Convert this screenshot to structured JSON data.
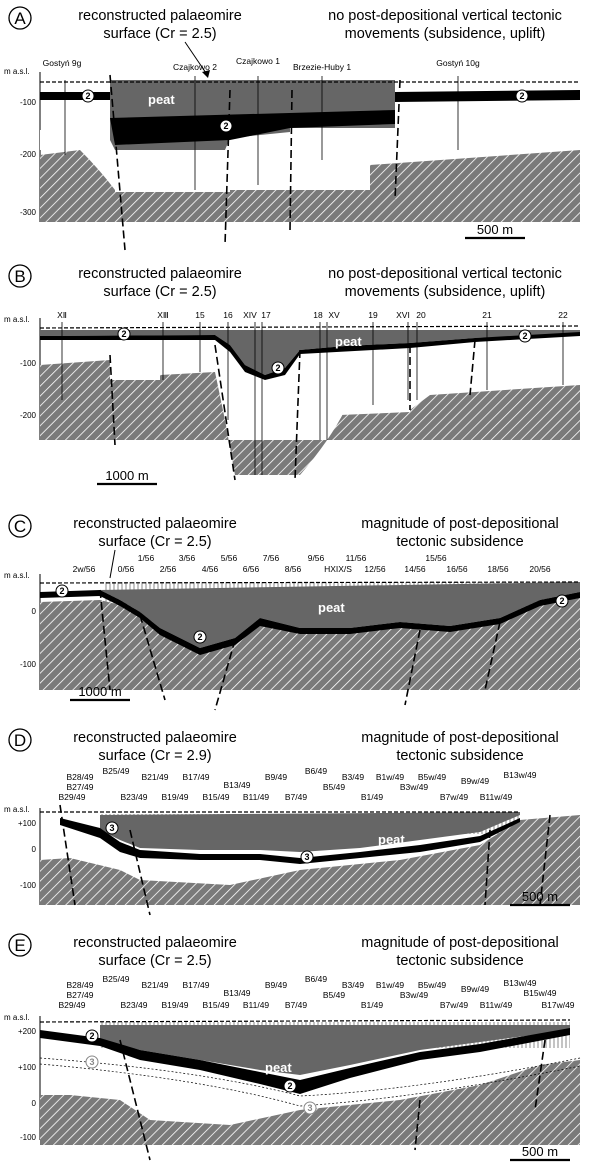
{
  "panels": [
    {
      "letter": "A",
      "left_title": [
        "reconstructed palaeomire",
        "surface (Cr = 2.5)"
      ],
      "right_title": [
        "no post-depositional vertical tectonic",
        "movements (subsidence, uplift)"
      ],
      "axis_unit": "m a.s.l.",
      "ticks": [
        "-100",
        "-200",
        "-300"
      ],
      "boreholes": [
        "Gostyń 9g",
        "Czajkowo 2",
        "Czajkowo 1",
        "Brzezie-Huby 1",
        "Gostyń 10g"
      ],
      "peat_label": "peat",
      "seam_label": "2",
      "scale_label": "500 m"
    },
    {
      "letter": "B",
      "left_title": [
        "reconstructed palaeomire",
        "surface (Cr = 2.5)"
      ],
      "right_title": [
        "no post-depositional vertical tectonic",
        "movements (subsidence, uplift)"
      ],
      "axis_unit": "m a.s.l.",
      "ticks": [
        "-100",
        "-200"
      ],
      "boreholes": [
        "XⅡ",
        "XⅢ",
        "15",
        "16",
        "XIV",
        "17",
        "18",
        "XV",
        "19",
        "XVI",
        "20",
        "21",
        "22"
      ],
      "peat_label": "peat",
      "seam_label": "2",
      "scale_label": "1000 m"
    },
    {
      "letter": "C",
      "left_title": [
        "reconstructed palaeomire",
        "surface (Cr = 2.5)"
      ],
      "right_title": [
        "magnitude of post-depositional",
        "tectonic subsidence"
      ],
      "axis_unit": "m a.s.l.",
      "ticks": [
        "0",
        "-100"
      ],
      "boreholes": [
        "2w/56",
        "0/56",
        "1/56",
        "2/56",
        "3/56",
        "4/56",
        "5/56",
        "6/56",
        "7/56",
        "8/56",
        "9/56",
        "HXIX/S",
        "11/56",
        "12/56",
        "14/56",
        "15/56",
        "16/56",
        "18/56",
        "20/56"
      ],
      "peat_label": "peat",
      "seam_label": "2",
      "scale_label": "1000 m"
    },
    {
      "letter": "D",
      "left_title": [
        "reconstructed palaeomire",
        "surface (Cr = 2.9)"
      ],
      "right_title": [
        "magnitude of post-depositional",
        "tectonic subsidence"
      ],
      "axis_unit": "m a.s.l.",
      "ticks": [
        "+100",
        "0",
        "-100"
      ],
      "boreholes": [
        "B28/49",
        "B25/49",
        "B21/49",
        "B17/49",
        "B13/49",
        "B9/49",
        "B6/49",
        "B3/49",
        "B1w/49",
        "B5w/49",
        "B9w/49",
        "B13w/49",
        "B27/49",
        "B29/49",
        "B23/49",
        "B19/49",
        "B15/49",
        "B11/49",
        "B7/49",
        "B5/49",
        "B1/49",
        "B3w/49",
        "B7w/49",
        "B11w/49"
      ],
      "peat_label": "peat",
      "seam_label": "3",
      "scale_label": "500 m"
    },
    {
      "letter": "E",
      "left_title": [
        "reconstructed palaeomire",
        "surface (Cr = 2.5)"
      ],
      "right_title": [
        "magnitude of post-depositional",
        "tectonic subsidence"
      ],
      "axis_unit": "m a.s.l.",
      "ticks": [
        "+200",
        "+100",
        "0",
        "-100"
      ],
      "boreholes": [
        "B28/49",
        "B25/49",
        "B21/49",
        "B17/49",
        "B13/49",
        "B9/49",
        "B6/49",
        "B3/49",
        "B1w/49",
        "B5w/49",
        "B9w/49",
        "B13w/49",
        "B15w/49",
        "B27/49",
        "B29/49",
        "B23/49",
        "B19/49",
        "B15/49",
        "B11/49",
        "B7/49",
        "B5/49",
        "B1/49",
        "B3w/49",
        "B7w/49",
        "B11w/49",
        "B17w/49"
      ],
      "peat_label": "peat",
      "seam_label": "2",
      "seam_label_lower": "3",
      "scale_label": "500 m"
    }
  ],
  "colors": {
    "peat": "#666666",
    "coal": "#000000",
    "hatch": "#777777",
    "line": "#000000"
  }
}
